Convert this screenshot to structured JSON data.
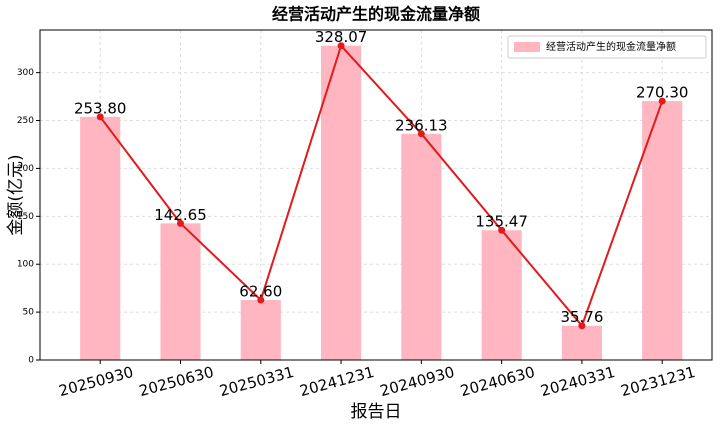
{
  "chart_data": {
    "type": "bar_line",
    "title": "经营活动产生的现金流量净额",
    "x_label": "报告日",
    "y_label": "金额(亿元)",
    "categories": [
      "20250930",
      "20250630",
      "20250331",
      "20241231",
      "20240930",
      "20240630",
      "20240331",
      "20231231"
    ],
    "series": [
      {
        "name": "经营活动产生的现金流量净额",
        "color": "#ffb6c1",
        "values": [
          253.8,
          142.65,
          62.6,
          328.07,
          236.13,
          135.47,
          35.76,
          270.3
        ],
        "value_labels": [
          "253.80",
          "142.65",
          "62.60",
          "328.07",
          "236.13",
          "135.47",
          "35.76",
          "270.30"
        ]
      }
    ],
    "line_color": "#e31a1c",
    "ylim": [
      0,
      344.5
    ],
    "yticks": [
      0,
      50,
      100,
      150,
      200,
      250,
      300
    ],
    "grid": true,
    "legend": "upper right"
  }
}
